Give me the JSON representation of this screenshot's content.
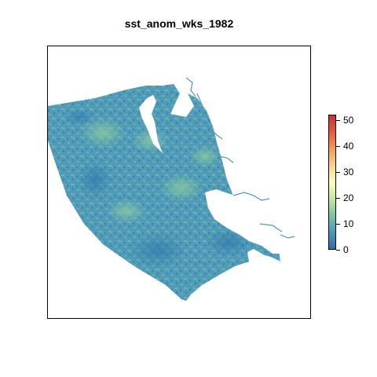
{
  "title": "sst_anom_wks_1982",
  "colors": {
    "sea_base": "#4f9bb9",
    "sea_dark": "#3f86b3",
    "sea_light": "#67b3a5",
    "sea_green": "#86c69f",
    "land": "#ffffff",
    "frame": "#000000"
  },
  "legend": {
    "min": 0,
    "max": 52,
    "ticks": [
      "0",
      "10",
      "20",
      "30",
      "40",
      "50"
    ],
    "tick_values": [
      0,
      10,
      20,
      30,
      40,
      50
    ],
    "palette": [
      "#2b6cb0",
      "#4a9ab8",
      "#7cc4a3",
      "#c7e79d",
      "#fefebd",
      "#fbd38a",
      "#f59b57",
      "#e55a3b",
      "#c73034"
    ]
  }
}
